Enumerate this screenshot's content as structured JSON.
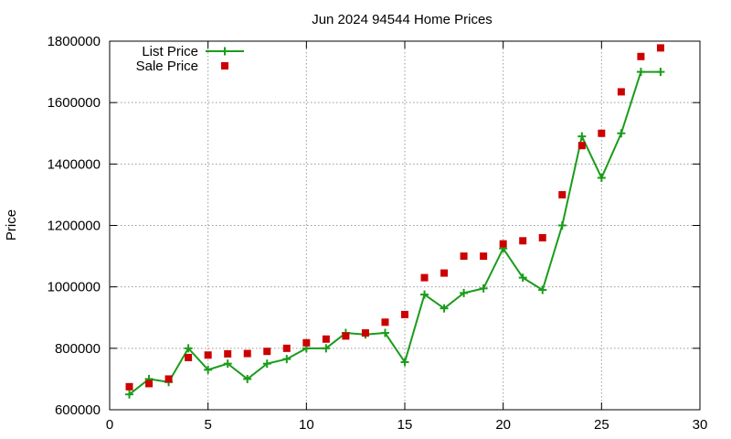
{
  "chart_data": {
    "type": "line",
    "title": "Jun 2024 94544 Home Prices",
    "xlabel": "",
    "ylabel": "Price",
    "xlim": [
      0,
      30
    ],
    "ylim": [
      600000,
      1800000
    ],
    "x_ticks": [
      0,
      5,
      10,
      15,
      20,
      25,
      30
    ],
    "y_ticks": [
      600000,
      800000,
      1000000,
      1200000,
      1400000,
      1600000,
      1800000
    ],
    "grid": true,
    "legend_position": "top-left",
    "series": [
      {
        "name": "List Price",
        "style": "line+points",
        "color": "#1a9c1a",
        "x": [
          1,
          2,
          3,
          4,
          5,
          6,
          7,
          8,
          9,
          10,
          11,
          12,
          13,
          14,
          15,
          16,
          17,
          18,
          19,
          20,
          21,
          22,
          23,
          24,
          25,
          26,
          27,
          28
        ],
        "values": [
          650000,
          700000,
          690000,
          800000,
          730000,
          750000,
          700000,
          750000,
          765000,
          800000,
          800000,
          850000,
          845000,
          850000,
          755000,
          975000,
          930000,
          980000,
          995000,
          1125000,
          1030000,
          990000,
          1200000,
          1490000,
          1355000,
          1500000,
          1700000,
          1700000
        ]
      },
      {
        "name": "Sale Price",
        "style": "points",
        "color": "#cc0000",
        "x": [
          1,
          2,
          3,
          4,
          5,
          6,
          7,
          8,
          9,
          10,
          11,
          12,
          13,
          14,
          15,
          16,
          17,
          18,
          19,
          20,
          21,
          22,
          23,
          24,
          25,
          26,
          27,
          28
        ],
        "values": [
          675000,
          685000,
          700000,
          770000,
          778000,
          782000,
          783000,
          790000,
          800000,
          818000,
          830000,
          840000,
          850000,
          885000,
          910000,
          1030000,
          1045000,
          1100000,
          1100000,
          1140000,
          1150000,
          1160000,
          1300000,
          1460000,
          1500000,
          1635000,
          1750000,
          1778000
        ]
      }
    ]
  }
}
